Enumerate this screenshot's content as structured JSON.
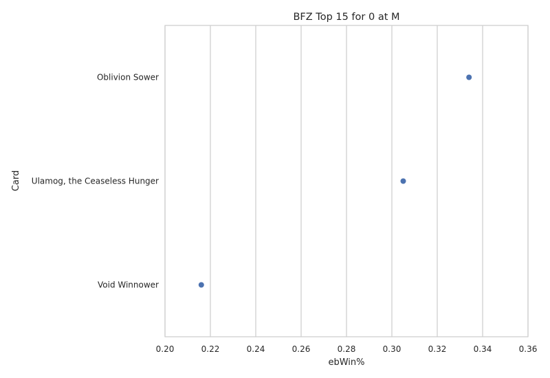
{
  "chart_data": {
    "type": "scatter",
    "orientation": "horizontal",
    "title": "BFZ Top 15 for 0 at M",
    "xlabel": "ebWin%",
    "ylabel": "Card",
    "xlim": [
      0.2,
      0.36
    ],
    "xticks": [
      "0.20",
      "0.22",
      "0.24",
      "0.26",
      "0.28",
      "0.30",
      "0.32",
      "0.34",
      "0.36"
    ],
    "xtick_values": [
      0.2,
      0.22,
      0.24,
      0.26,
      0.28,
      0.3,
      0.32,
      0.34,
      0.36
    ],
    "categories": [
      "Oblivion Sower",
      "Ulamog, the Ceaseless Hunger",
      "Void Winnower"
    ],
    "values": [
      0.334,
      0.305,
      0.216
    ],
    "grid": "vertical",
    "legend": "none",
    "point_color": "#4c72b0"
  }
}
